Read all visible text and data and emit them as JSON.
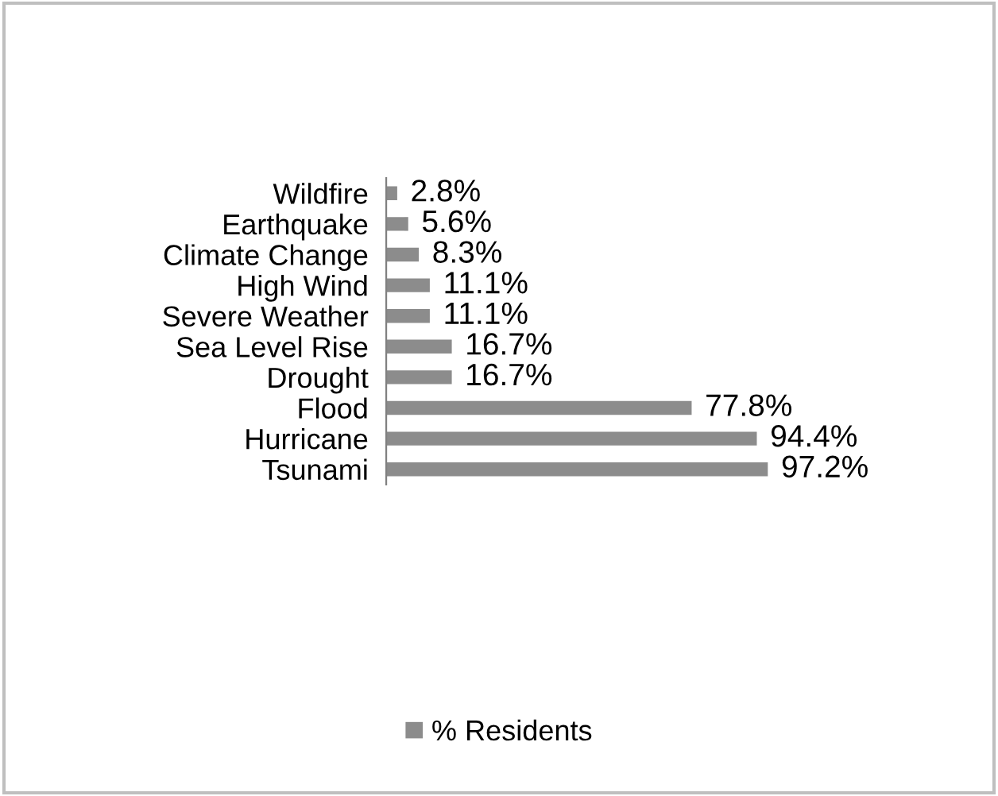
{
  "chart_data": {
    "type": "bar",
    "orientation": "horizontal",
    "categories": [
      "Wildfire",
      "Earthquake",
      "Climate Change",
      "High Wind",
      "Severe Weather",
      "Sea Level Rise",
      "Drought",
      "Flood",
      "Hurricane",
      "Tsunami"
    ],
    "series": [
      {
        "name": "% Residents",
        "color": "#8c8c8c",
        "values": [
          2.8,
          5.6,
          8.3,
          11.1,
          11.1,
          16.7,
          16.7,
          77.8,
          94.4,
          97.2
        ],
        "value_labels": [
          "2.8%",
          "5.6%",
          "8.3%",
          "11.1%",
          "11.1%",
          "16.7%",
          "16.7%",
          "77.8%",
          "94.4%",
          "97.2%"
        ]
      }
    ],
    "legend": "bottom",
    "grid": false,
    "tick_labels": "y"
  }
}
